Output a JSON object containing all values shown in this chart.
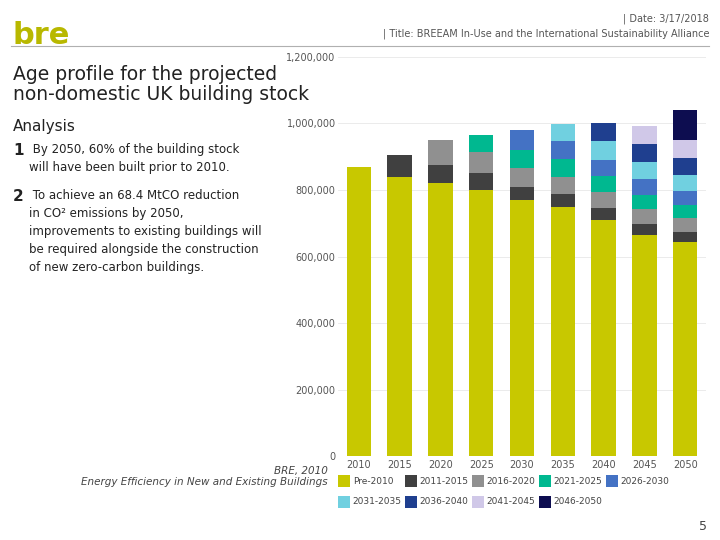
{
  "years": [
    "2010",
    "2015",
    "2020",
    "2025",
    "2030",
    "2035",
    "2040",
    "2045",
    "2050"
  ],
  "series": {
    "Pre-2010": [
      870000,
      840000,
      820000,
      800000,
      770000,
      750000,
      710000,
      665000,
      645000
    ],
    "2011-2015": [
      0,
      65000,
      55000,
      50000,
      40000,
      38000,
      35000,
      33000,
      30000
    ],
    "2016-2020": [
      0,
      0,
      75000,
      65000,
      55000,
      52000,
      48000,
      44000,
      40000
    ],
    "2021-2025": [
      0,
      0,
      0,
      50000,
      55000,
      52000,
      48000,
      44000,
      40000
    ],
    "2026-2030": [
      0,
      0,
      0,
      0,
      60000,
      55000,
      50000,
      47000,
      43000
    ],
    "2031-2035": [
      0,
      0,
      0,
      0,
      0,
      50000,
      55000,
      50000,
      46000
    ],
    "2036-2040": [
      0,
      0,
      0,
      0,
      0,
      0,
      55000,
      55000,
      52000
    ],
    "2041-2045": [
      0,
      0,
      0,
      0,
      0,
      0,
      0,
      55000,
      55000
    ],
    "2046-2050": [
      0,
      0,
      0,
      0,
      0,
      0,
      0,
      0,
      90000
    ]
  },
  "colors": {
    "Pre-2010": "#c8c800",
    "2011-2015": "#404040",
    "2016-2020": "#909090",
    "2021-2025": "#00b890",
    "2026-2030": "#4472c4",
    "2031-2035": "#70d0e0",
    "2036-2040": "#1f3f8f",
    "2041-2045": "#d0c8e8",
    "2046-2050": "#0d0d50"
  },
  "ylim": [
    0,
    1200000
  ],
  "yticks": [
    0,
    200000,
    400000,
    600000,
    800000,
    1000000,
    1200000
  ],
  "ytick_labels": [
    "0",
    "200,000",
    "400,000",
    "600,000",
    "800,000",
    "1,000,000",
    "1,200,000"
  ],
  "header_date": "| Date: 3/17/2018",
  "header_title": "| Title: BREEAM In-Use and the International Sustainability Alliance",
  "chart_title_line1": "Age profile for the projected",
  "chart_title_line2": "non-domestic UK building stock",
  "analysis_label": "Analysis",
  "point1_num": "1",
  "point1_text": " By 2050, 60% of the building stock\nwill have been built prior to 2010.",
  "point2_num": "2",
  "point2_text": " To achieve an 68.4 MtCO reduction\nin CO² emissions by 2050,\nimprovements to existing buildings will\nbe required alongside the construction\nof new zero-carbon buildings.",
  "source_line1": "BRE, 2010",
  "source_line2": "Energy Efficiency in New and Existing Buildings",
  "page_number": "5",
  "bre_logo_color": "#b8b800",
  "bre_logo_text": "bre",
  "bg_color": "#ffffff",
  "legend_row1": [
    "Pre-2010",
    "2011-2015",
    "2016-2020",
    "2021-2025",
    "2026-2030"
  ],
  "legend_row2": [
    "2031-2035",
    "2036-2040",
    "2041-2045",
    "2046-2050"
  ]
}
